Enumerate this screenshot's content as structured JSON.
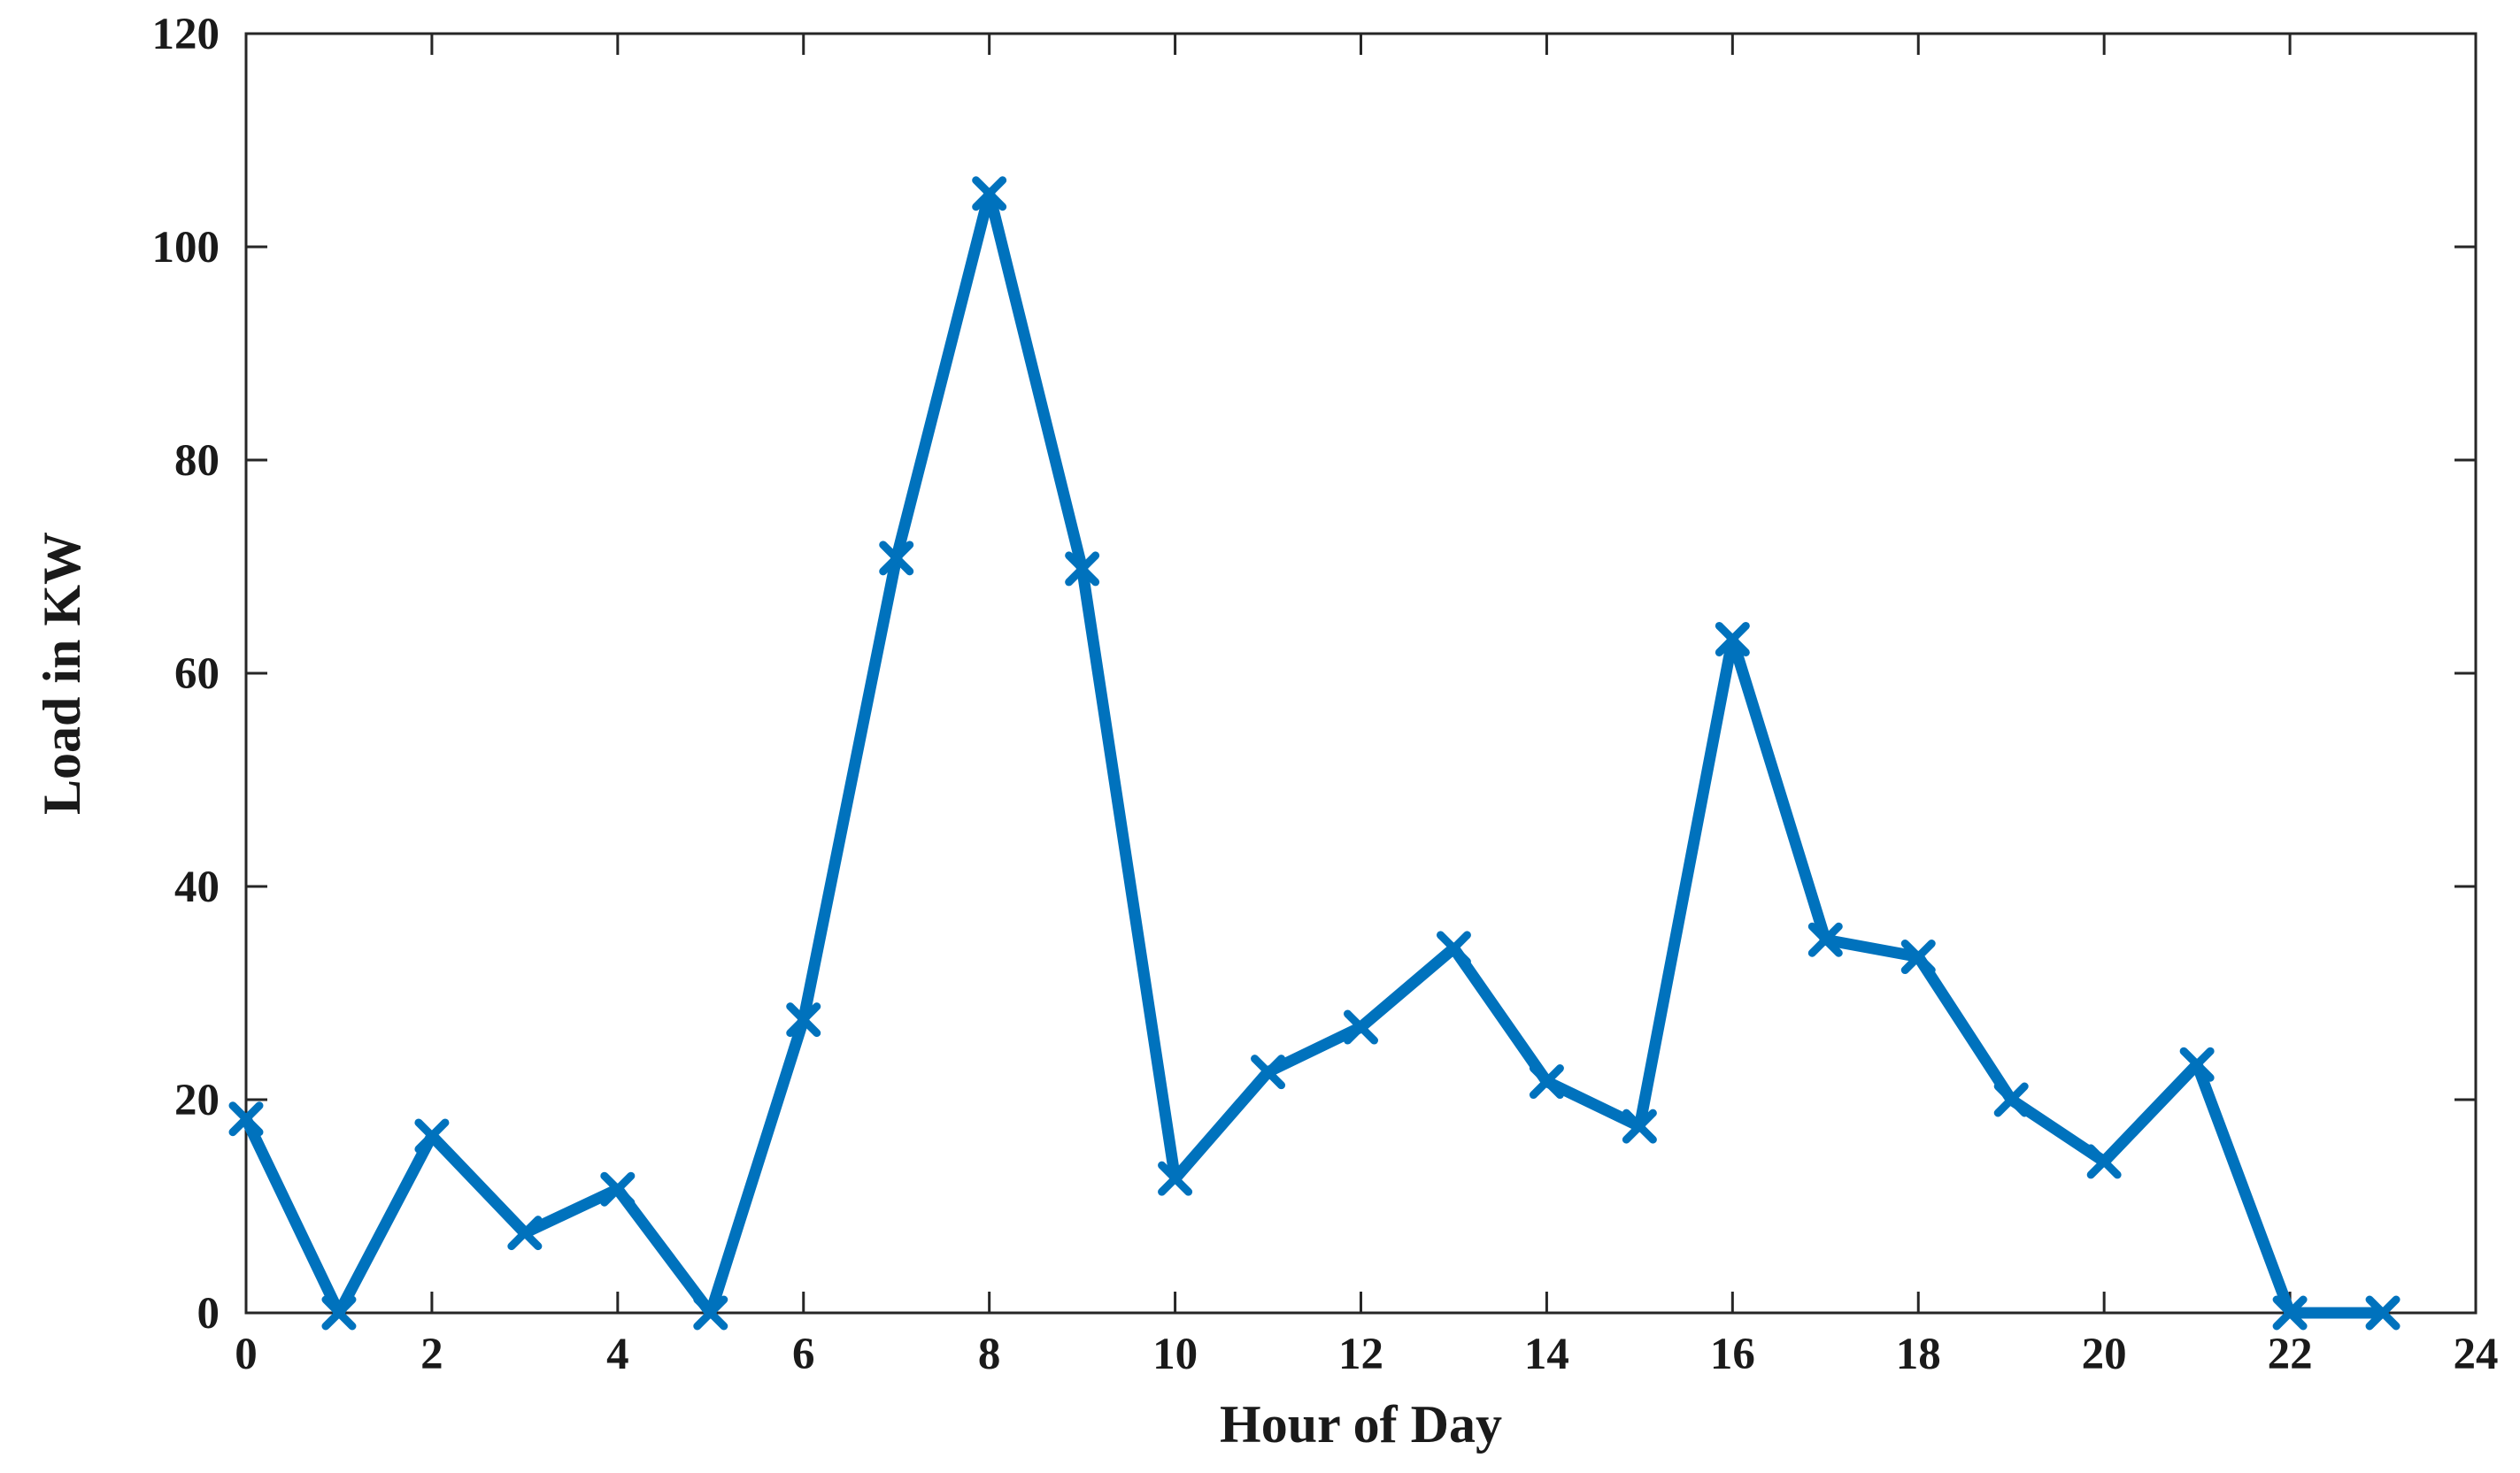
{
  "chart_data": {
    "type": "line",
    "title": "",
    "xlabel": "Hour of Day",
    "ylabel": "Load in KW",
    "xlim": [
      0,
      24
    ],
    "ylim": [
      0,
      120
    ],
    "xticks": [
      "0",
      "2",
      "4",
      "6",
      "8",
      "10",
      "12",
      "14",
      "16",
      "18",
      "20",
      "22",
      "24"
    ],
    "yticks": [
      "0",
      "20",
      "40",
      "60",
      "80",
      "100",
      "120"
    ],
    "grid": false,
    "legend": "none",
    "color": "#0072BD",
    "marker": "x",
    "x": [
      0,
      1,
      2,
      3,
      4,
      5,
      6,
      7,
      8,
      9,
      10,
      11,
      12,
      13,
      14,
      15,
      16,
      17,
      18,
      19,
      20,
      21,
      22,
      23
    ],
    "series": [
      {
        "values": [
          18.2,
          0,
          16.6,
          7.5,
          11.6,
          0,
          27.5,
          70.8,
          105,
          69.8,
          12.6,
          22.6,
          26.8,
          34.2,
          21.7,
          17.5,
          63.2,
          35,
          33.4,
          20,
          14.2,
          23.3,
          0,
          0
        ]
      }
    ]
  }
}
